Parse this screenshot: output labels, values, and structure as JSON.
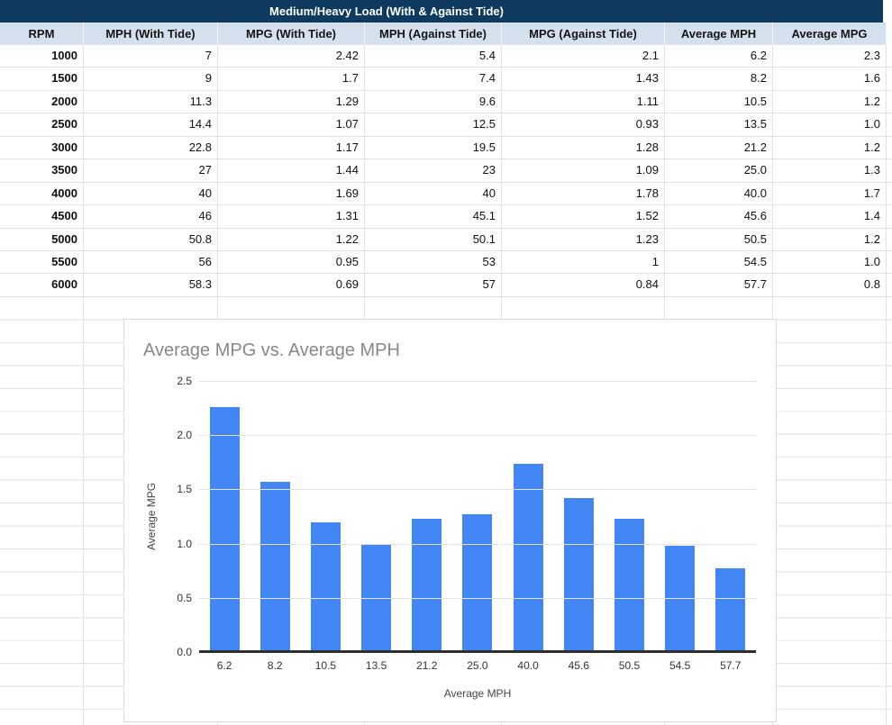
{
  "banner": {
    "title": "Medium/Heavy Load (With & Against Tide)"
  },
  "table": {
    "columns": [
      "RPM",
      "MPH (With Tide)",
      "MPG (With Tide)",
      "MPH (Against Tide)",
      "MPG (Against Tide)",
      "Average MPH",
      "Average MPG"
    ],
    "rows": [
      [
        "1000",
        "7",
        "2.42",
        "5.4",
        "2.1",
        "6.2",
        "2.3"
      ],
      [
        "1500",
        "9",
        "1.7",
        "7.4",
        "1.43",
        "8.2",
        "1.6"
      ],
      [
        "2000",
        "11.3",
        "1.29",
        "9.6",
        "1.11",
        "10.5",
        "1.2"
      ],
      [
        "2500",
        "14.4",
        "1.07",
        "12.5",
        "0.93",
        "13.5",
        "1.0"
      ],
      [
        "3000",
        "22.8",
        "1.17",
        "19.5",
        "1.28",
        "21.2",
        "1.2"
      ],
      [
        "3500",
        "27",
        "1.44",
        "23",
        "1.09",
        "25.0",
        "1.3"
      ],
      [
        "4000",
        "40",
        "1.69",
        "40",
        "1.78",
        "40.0",
        "1.7"
      ],
      [
        "4500",
        "46",
        "1.31",
        "45.1",
        "1.52",
        "45.6",
        "1.4"
      ],
      [
        "5000",
        "50.8",
        "1.22",
        "50.1",
        "1.23",
        "50.5",
        "1.2"
      ],
      [
        "5500",
        "56",
        "0.95",
        "53",
        "1",
        "54.5",
        "1.0"
      ],
      [
        "6000",
        "58.3",
        "0.69",
        "57",
        "0.84",
        "57.7",
        "0.8"
      ]
    ]
  },
  "chart_data": {
    "type": "bar",
    "title": "Average MPG vs. Average MPH",
    "categories": [
      "6.2",
      "8.2",
      "10.5",
      "13.5",
      "21.2",
      "25.0",
      "40.0",
      "45.6",
      "50.5",
      "54.5",
      "57.7"
    ],
    "values": [
      2.26,
      1.57,
      1.2,
      1.0,
      1.23,
      1.27,
      1.74,
      1.42,
      1.23,
      0.98,
      0.77
    ],
    "xlabel": "Average MPH",
    "ylabel": "Average MPG",
    "ylim": [
      0,
      2.5
    ],
    "yticks": [
      "0.0",
      "0.5",
      "1.0",
      "1.5",
      "2.0",
      "2.5"
    ],
    "grid": true,
    "legend": "none"
  },
  "colors": {
    "banner_bg": "#0e3a5f",
    "header_bg": "#d5e0ee",
    "bar_color": "#4285f4"
  }
}
